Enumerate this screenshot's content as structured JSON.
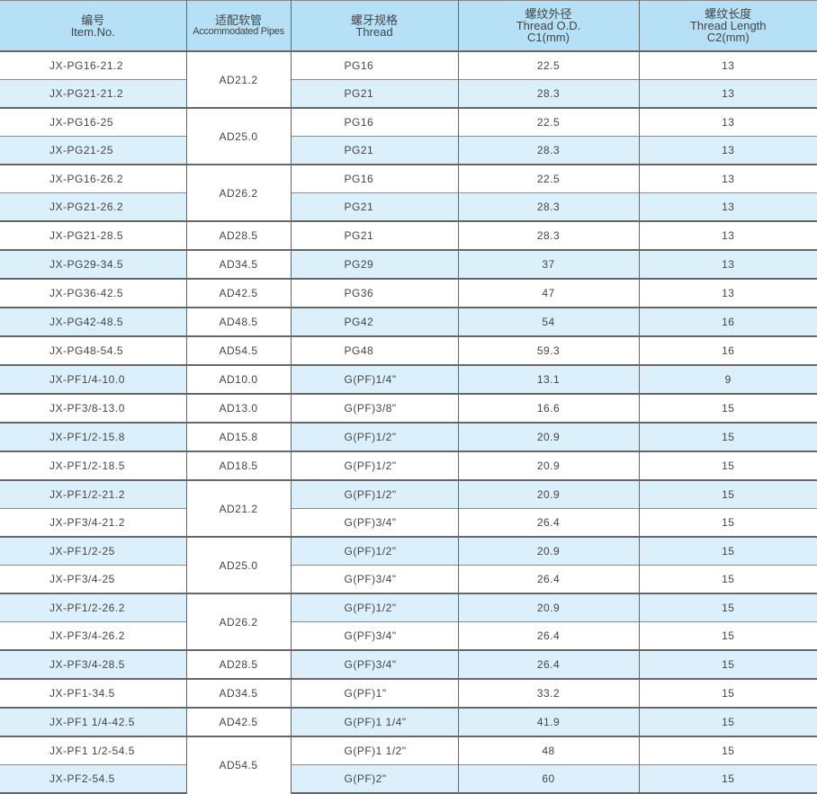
{
  "header": {
    "item": {
      "cn": "编号",
      "en": "Item.No."
    },
    "pipe": {
      "cn": "适配软管",
      "en": "Accommodated Pipes"
    },
    "thread": {
      "cn": "螺牙规格",
      "en": "Thread"
    },
    "od": {
      "cn": "螺纹外径",
      "en": "Thread O.D.",
      "unit": "C1(mm)"
    },
    "length": {
      "cn": "螺纹长度",
      "en": "Thread Length",
      "unit": "C2(mm)"
    }
  },
  "colors": {
    "header_bg": "#b6e0f6",
    "stripe_bg": "#dcf0fc"
  },
  "pipe_groups": [
    {
      "label": "AD21.2",
      "span": 2
    },
    {
      "label": "AD25.0",
      "span": 2
    },
    {
      "label": "AD26.2",
      "span": 2
    },
    {
      "label": "AD28.5",
      "span": 1
    },
    {
      "label": "AD34.5",
      "span": 1
    },
    {
      "label": "AD42.5",
      "span": 1
    },
    {
      "label": "AD48.5",
      "span": 1
    },
    {
      "label": "AD54.5",
      "span": 1
    },
    {
      "label": "AD10.0",
      "span": 1
    },
    {
      "label": "AD13.0",
      "span": 1
    },
    {
      "label": "AD15.8",
      "span": 1
    },
    {
      "label": "AD18.5",
      "span": 1
    },
    {
      "label": "AD21.2",
      "span": 2
    },
    {
      "label": "AD25.0",
      "span": 2
    },
    {
      "label": "AD26.2",
      "span": 2
    },
    {
      "label": "AD28.5",
      "span": 1
    },
    {
      "label": "AD34.5",
      "span": 1
    },
    {
      "label": "AD42.5",
      "span": 1
    },
    {
      "label": "AD54.5",
      "span": 2
    }
  ],
  "rows": [
    {
      "item": "JX-PG16-21.2",
      "thread": "PG16",
      "od": "22.5",
      "length": "13"
    },
    {
      "item": "JX-PG21-21.2",
      "thread": "PG21",
      "od": "28.3",
      "length": "13"
    },
    {
      "item": "JX-PG16-25",
      "thread": "PG16",
      "od": "22.5",
      "length": "13"
    },
    {
      "item": "JX-PG21-25",
      "thread": "PG21",
      "od": "28.3",
      "length": "13"
    },
    {
      "item": "JX-PG16-26.2",
      "thread": "PG16",
      "od": "22.5",
      "length": "13"
    },
    {
      "item": "JX-PG21-26.2",
      "thread": "PG21",
      "od": "28.3",
      "length": "13"
    },
    {
      "item": "JX-PG21-28.5",
      "thread": "PG21",
      "od": "28.3",
      "length": "13"
    },
    {
      "item": "JX-PG29-34.5",
      "thread": "PG29",
      "od": "37",
      "length": "13"
    },
    {
      "item": "JX-PG36-42.5",
      "thread": "PG36",
      "od": "47",
      "length": "13"
    },
    {
      "item": "JX-PG42-48.5",
      "thread": "PG42",
      "od": "54",
      "length": "16"
    },
    {
      "item": "JX-PG48-54.5",
      "thread": "PG48",
      "od": "59.3",
      "length": "16"
    },
    {
      "item": "JX-PF1/4-10.0",
      "thread": "G(PF)1/4\"",
      "od": "13.1",
      "length": "9"
    },
    {
      "item": "JX-PF3/8-13.0",
      "thread": "G(PF)3/8\"",
      "od": "16.6",
      "length": "15"
    },
    {
      "item": "JX-PF1/2-15.8",
      "thread": "G(PF)1/2\"",
      "od": "20.9",
      "length": "15"
    },
    {
      "item": "JX-PF1/2-18.5",
      "thread": "G(PF)1/2\"",
      "od": "20.9",
      "length": "15"
    },
    {
      "item": "JX-PF1/2-21.2",
      "thread": "G(PF)1/2\"",
      "od": "20.9",
      "length": "15"
    },
    {
      "item": "JX-PF3/4-21.2",
      "thread": "G(PF)3/4\"",
      "od": "26.4",
      "length": "15"
    },
    {
      "item": "JX-PF1/2-25",
      "thread": "G(PF)1/2\"",
      "od": "20.9",
      "length": "15"
    },
    {
      "item": "JX-PF3/4-25",
      "thread": "G(PF)3/4\"",
      "od": "26.4",
      "length": "15"
    },
    {
      "item": "JX-PF1/2-26.2",
      "thread": "G(PF)1/2\"",
      "od": "20.9",
      "length": "15"
    },
    {
      "item": "JX-PF3/4-26.2",
      "thread": "G(PF)3/4\"",
      "od": "26.4",
      "length": "15"
    },
    {
      "item": "JX-PF3/4-28.5",
      "thread": "G(PF)3/4\"",
      "od": "26.4",
      "length": "15"
    },
    {
      "item": "JX-PF1-34.5",
      "thread": "G(PF)1\"",
      "od": "33.2",
      "length": "15"
    },
    {
      "item": "JX-PF1 1/4-42.5",
      "thread": "G(PF)1 1/4\"",
      "od": "41.9",
      "length": "15"
    },
    {
      "item": "JX-PF1 1/2-54.5",
      "thread": "G(PF)1 1/2\"",
      "od": "48",
      "length": "15"
    },
    {
      "item": "JX-PF2-54.5",
      "thread": "G(PF)2\"",
      "od": "60",
      "length": "15"
    }
  ]
}
